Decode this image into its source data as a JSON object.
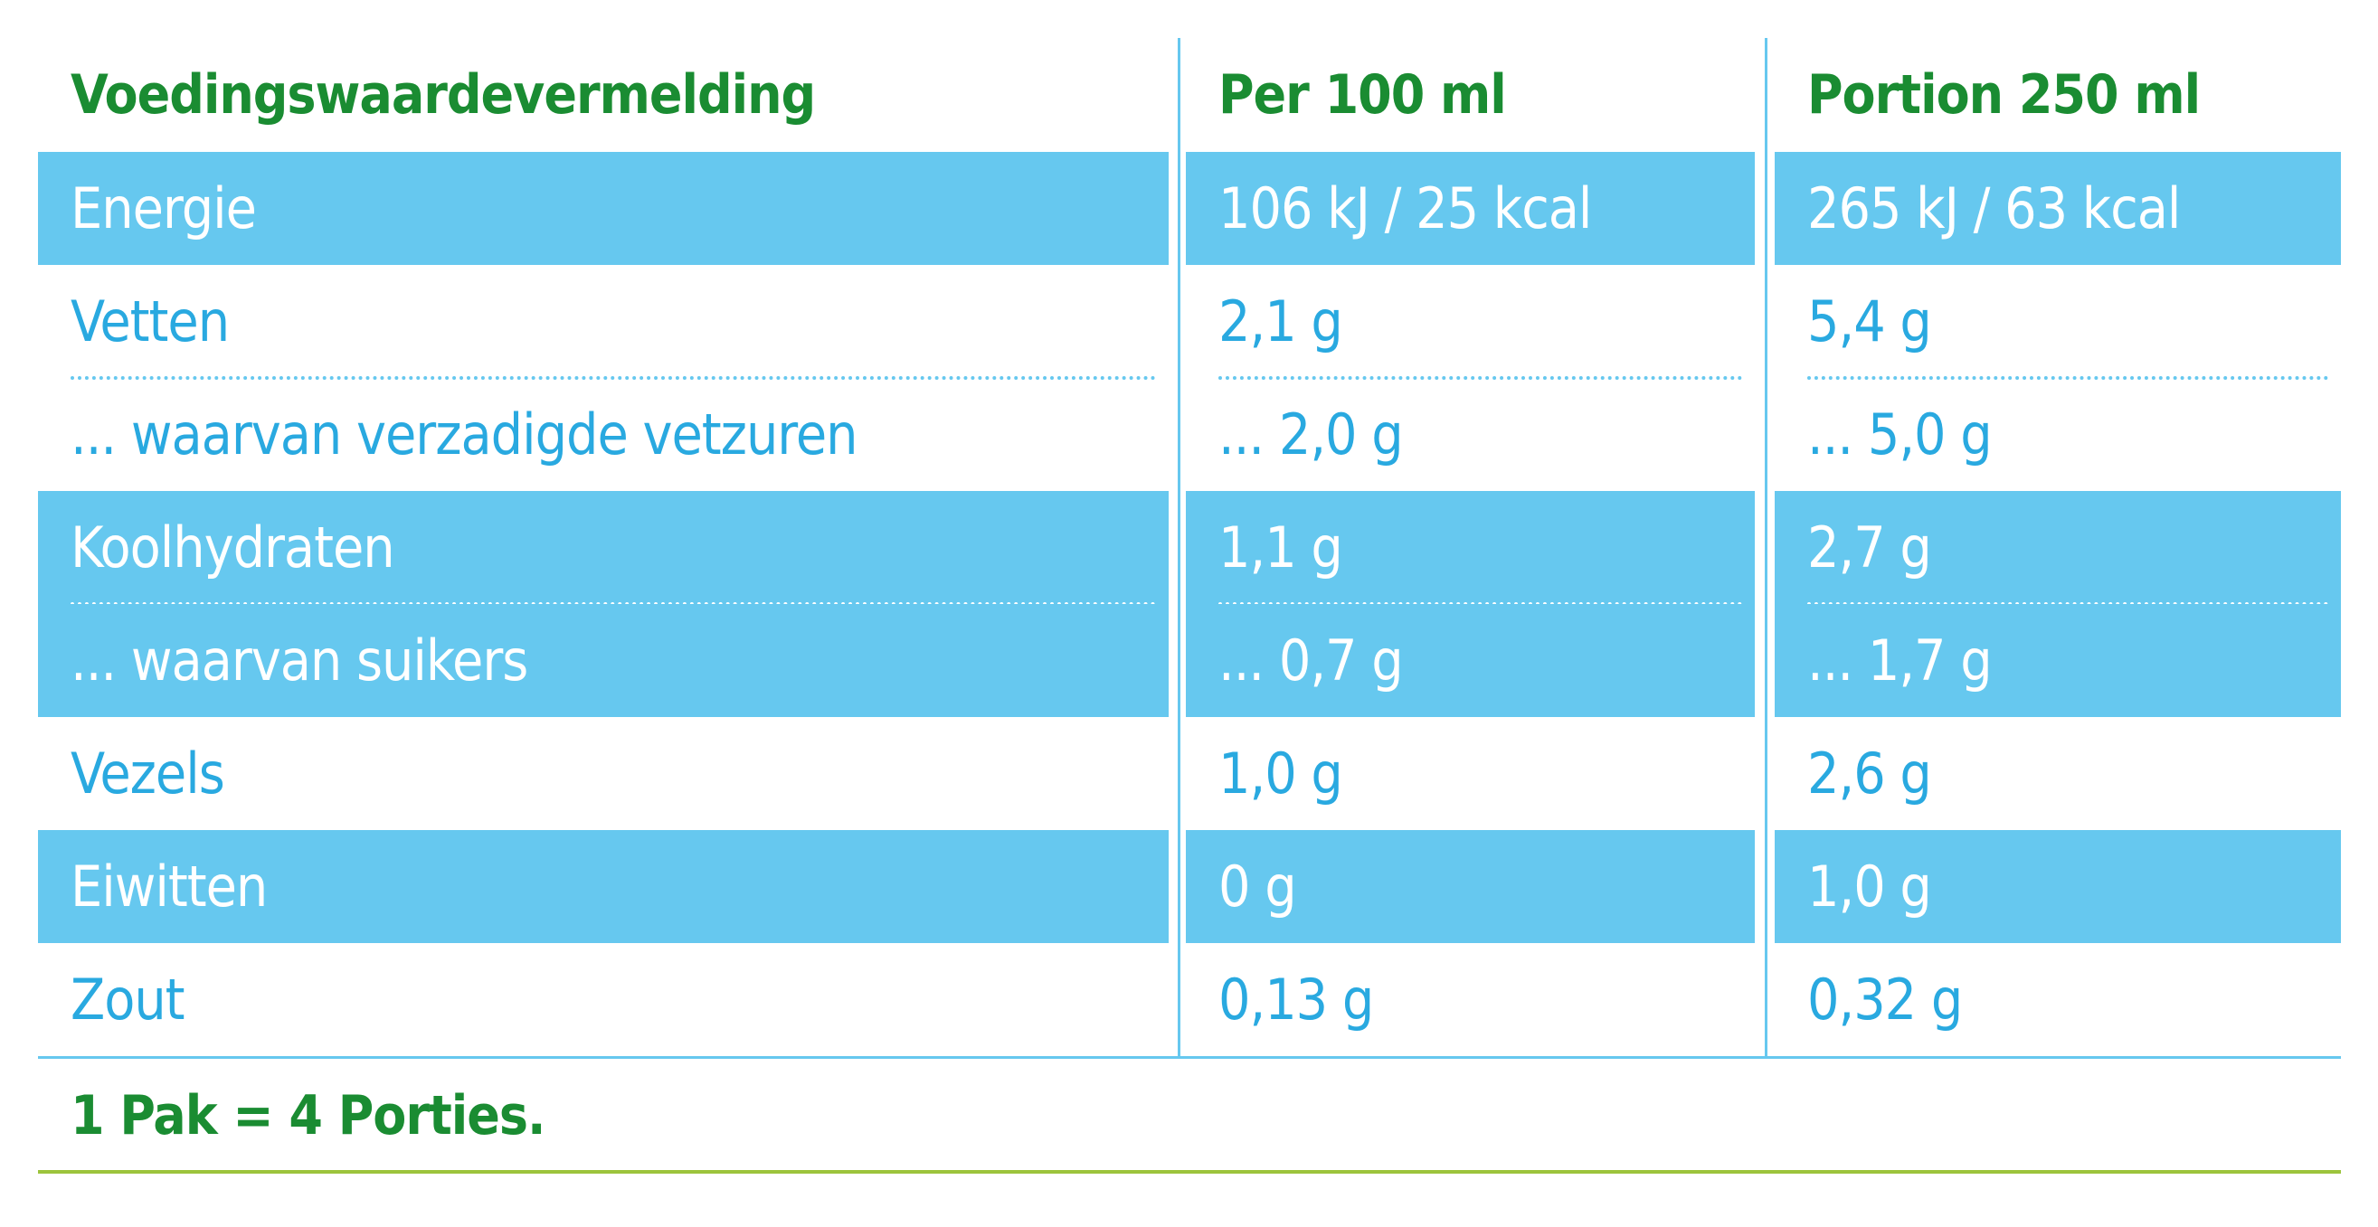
{
  "table": {
    "header": [
      "Voedingswaardevermelding",
      "Per 100 ml",
      "Portion 250 ml"
    ],
    "rows": [
      [
        "Energie",
        "106 kJ / 25 kcal",
        "265 kJ / 63 kcal"
      ],
      [
        "Vetten",
        "2,1 g",
        "5,4 g"
      ],
      [
        "... waarvan verzadigde vetzuren",
        "... 2,0 g",
        "... 5,0 g"
      ],
      [
        "Koolhydraten",
        "1,1 g",
        "2,7 g"
      ],
      [
        "... waarvan suikers",
        "... 0,7 g",
        "... 1,7 g"
      ],
      [
        "Vezels",
        "1,0 g",
        "2,6 g"
      ],
      [
        "Eiwitten",
        "0 g",
        "1,0 g"
      ],
      [
        "Zout",
        "0,13 g",
        "0,32 g"
      ]
    ]
  },
  "footer": "1 Pak = 4 Porties."
}
